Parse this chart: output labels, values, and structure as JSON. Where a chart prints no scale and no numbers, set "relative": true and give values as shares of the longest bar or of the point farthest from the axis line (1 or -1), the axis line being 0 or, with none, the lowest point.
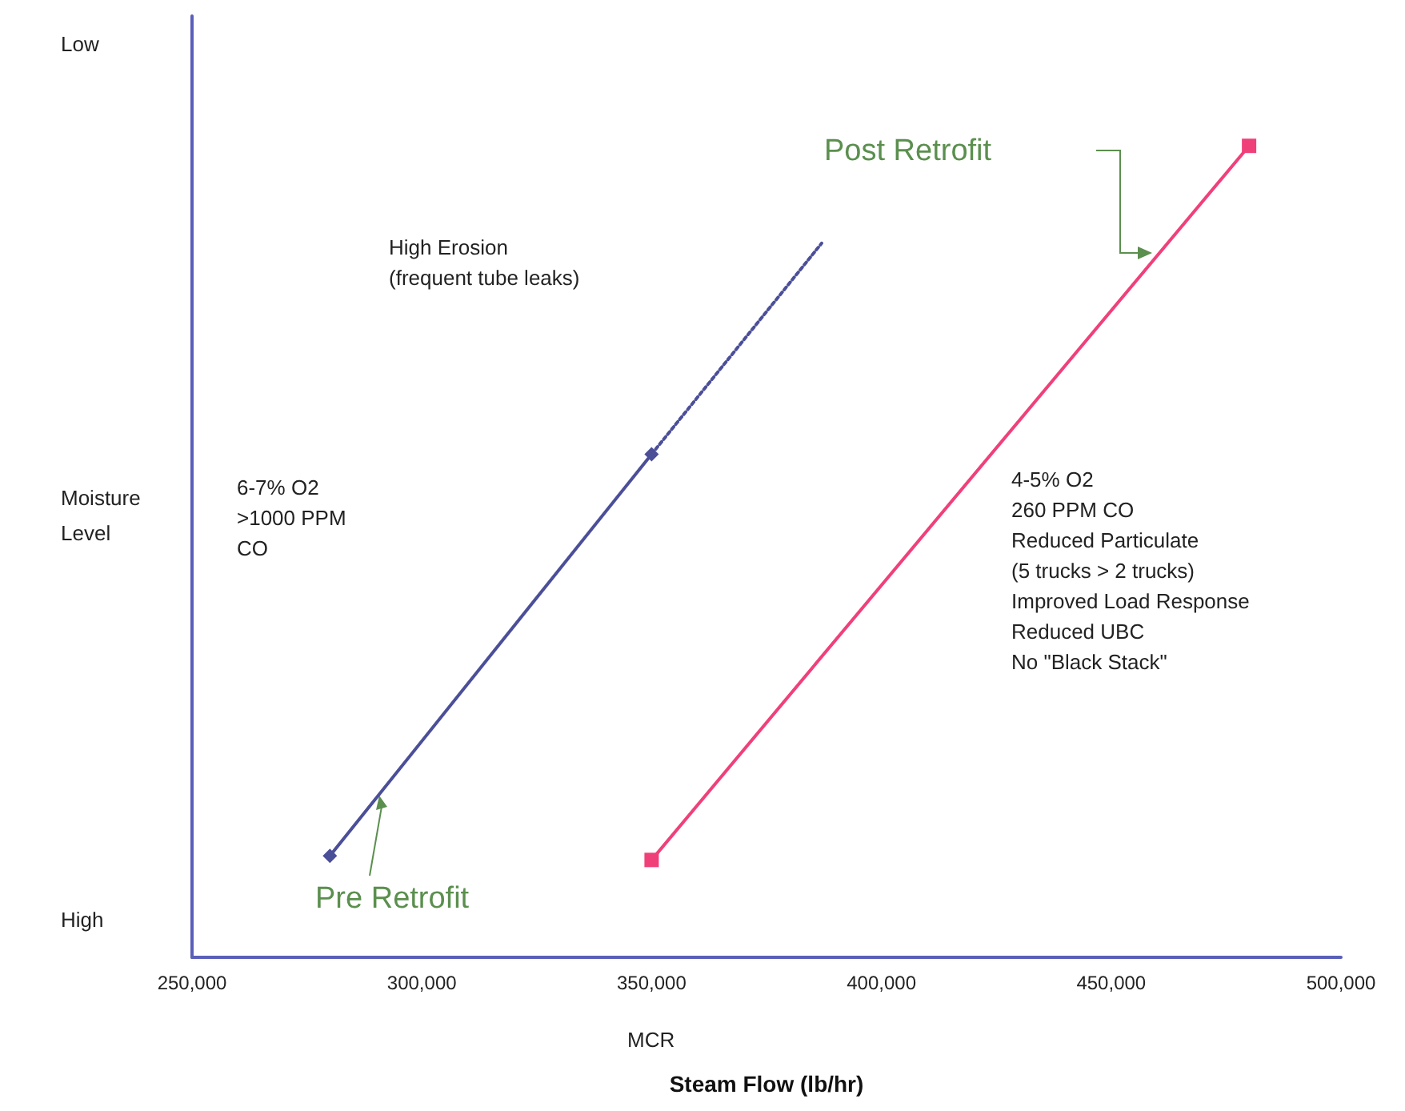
{
  "chart_data": {
    "type": "line",
    "xlabel": "Steam Flow (lb/hr)",
    "ylabel": "Moisture Level",
    "xlim": [
      250000,
      500000
    ],
    "xticks": [
      {
        "value": 250000,
        "label": "250,000"
      },
      {
        "value": 300000,
        "label": "300,000"
      },
      {
        "value": 350000,
        "label": "350,000"
      },
      {
        "value": 400000,
        "label": "400,000"
      },
      {
        "value": 450000,
        "label": "450,000"
      },
      {
        "value": 500000,
        "label": "500,000"
      }
    ],
    "relative": true,
    "grid": false,
    "series": [
      {
        "color": "#4b4f98",
        "x": [
          280000,
          350000
        ],
        "values": [
          0.125,
          0.62
        ],
        "marker": "diamond",
        "line_style": "solid"
      },
      {
        "color": "#4b4f98",
        "x": [
          350000,
          387000
        ],
        "values": [
          0.62,
          0.88
        ],
        "marker": "none",
        "line_style": "dotted"
      },
      {
        "color": "#f0407a",
        "x": [
          350000,
          480000
        ],
        "values": [
          0.12,
          1
        ],
        "marker": "square",
        "line_style": "solid"
      }
    ],
    "annotations": [
      "Pre Retrofit",
      "Post Retrofit",
      "High Erosion\n(frequent tube leaks)",
      "6-7% O2\n>1000 PPM\nCO",
      "4-5% O2\n260 PPM CO\nReduced Particulate\n(5 trucks > 2 trucks)\nImproved Load Response\nReduced UBC\nNo \"Black Stack\"",
      "MCR",
      "Low",
      "High"
    ]
  }
}
